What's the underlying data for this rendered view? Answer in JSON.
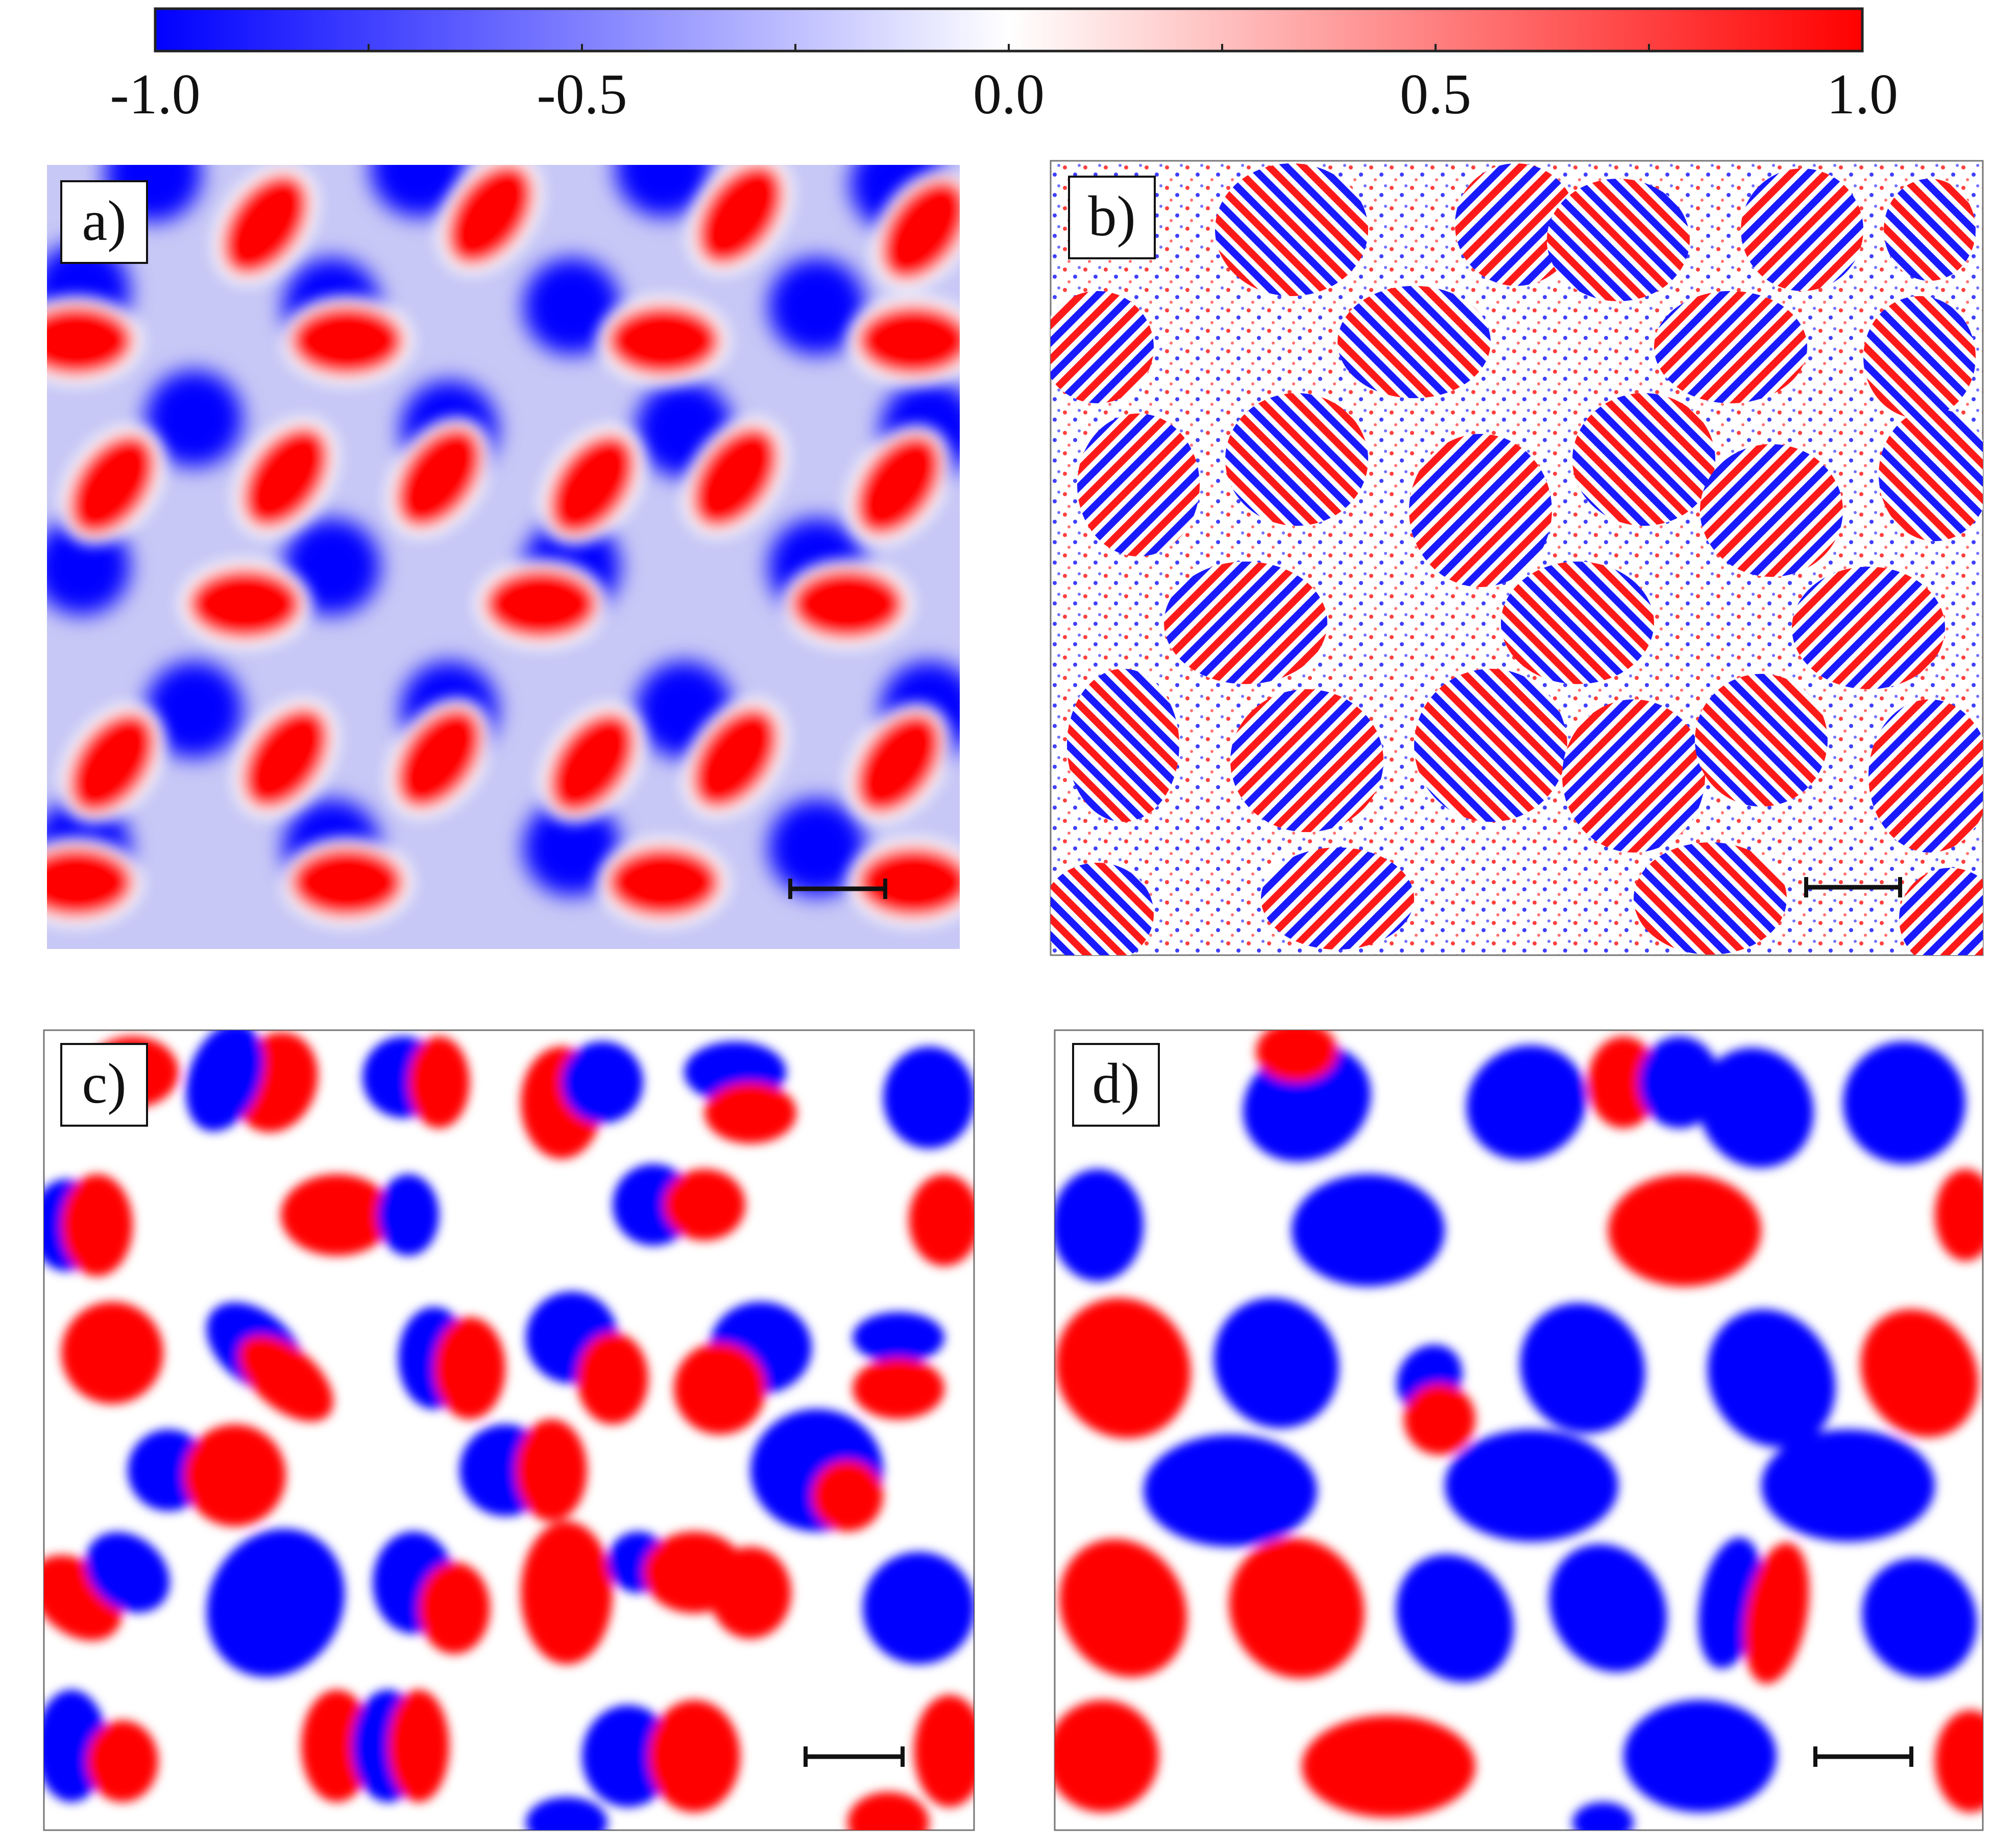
{
  "colorbar": {
    "ticks": [
      "-1.0",
      "-0.5",
      "0.0",
      "0.5",
      "1.0"
    ],
    "tick_values": [
      -1.0,
      -0.5,
      0.0,
      0.5,
      1.0
    ],
    "colors": {
      "negative": "#0000ff",
      "zero": "#ffffff",
      "positive": "#ff0000"
    }
  },
  "panels": [
    {
      "label": "a)"
    },
    {
      "label": "b)"
    },
    {
      "label": "c)"
    },
    {
      "label": "d)"
    }
  ],
  "scale_bar": {
    "color": "#111111"
  }
}
